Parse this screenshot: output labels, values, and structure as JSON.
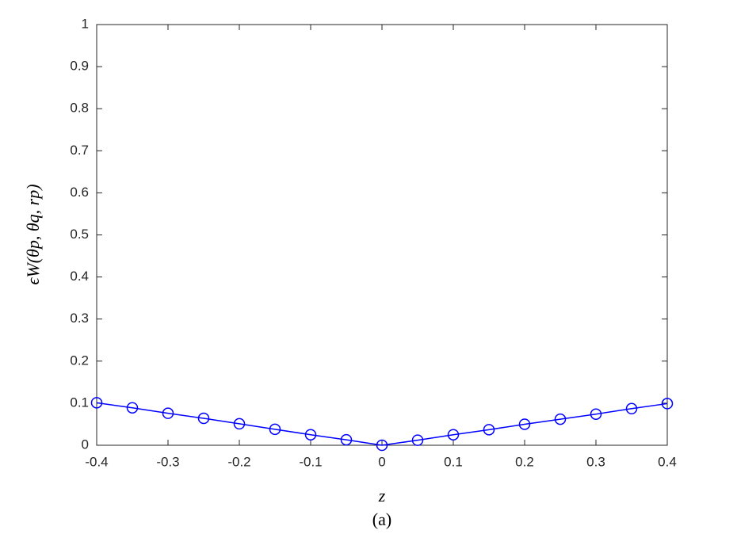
{
  "chart_data": {
    "type": "line",
    "xlabel": "z",
    "ylabel": "ϵW(θp, θq, rp)",
    "caption": "(a)",
    "x": [
      -0.4,
      -0.35,
      -0.3,
      -0.25,
      -0.2,
      -0.15,
      -0.1,
      -0.05,
      0,
      0.05,
      0.1,
      0.15,
      0.2,
      0.25,
      0.3,
      0.35,
      0.4
    ],
    "series": [
      {
        "color": "#0000ff",
        "values": [
          0.101,
          0.089,
          0.076,
          0.064,
          0.051,
          0.038,
          0.025,
          0.013,
          0,
          0.012,
          0.025,
          0.037,
          0.05,
          0.062,
          0.074,
          0.087,
          0.099
        ]
      }
    ],
    "xlim": [
      -0.4,
      0.4
    ],
    "xticks": [
      -0.4,
      -0.3,
      -0.2,
      -0.1,
      0,
      0.1,
      0.2,
      0.3,
      0.4
    ],
    "ylim": [
      0,
      1
    ],
    "yticks": [
      0,
      0.1,
      0.2,
      0.3,
      0.4,
      0.5,
      0.6,
      0.7,
      0.8,
      0.9,
      1
    ],
    "grid": false,
    "marker": "circle"
  }
}
